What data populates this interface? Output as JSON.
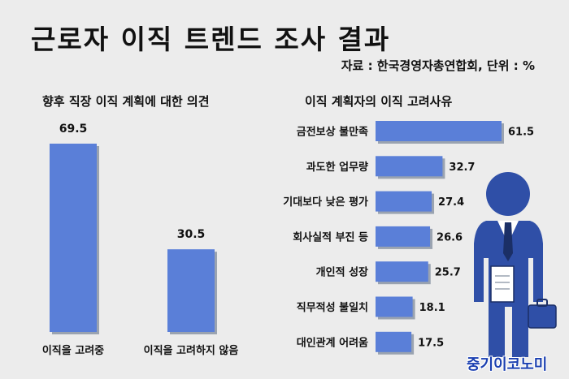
{
  "title": "근로자 이직 트렌드 조사 결과",
  "source": "자료 : 한국경영자총연합회, 단위 : %",
  "watermark": "중기이코노미",
  "colors": {
    "bar": "#5a7fd8",
    "bar_shadow": "#9aa3b0",
    "background": "#ececec"
  },
  "chart_data": [
    {
      "type": "bar",
      "orientation": "vertical",
      "title": "향후 직장 이직 계획에 대한 의견",
      "categories": [
        "이직을 고려중",
        "이직을 고려하지 않음"
      ],
      "values": [
        69.5,
        30.5
      ],
      "ylim": [
        0,
        69.5
      ],
      "grid": false
    },
    {
      "type": "bar",
      "orientation": "horizontal",
      "title": "이직 계획자의 이직 고려사유",
      "categories": [
        "금전보상 불만족",
        "과도한 업무량",
        "기대보다 낮은 평가",
        "회사실적 부진 등",
        "개인적 성장",
        "직무적성 불일치",
        "대인관계 어려움"
      ],
      "values": [
        61.5,
        32.7,
        27.4,
        26.6,
        25.7,
        18.1,
        17.5
      ],
      "xlim": [
        0,
        61.5
      ],
      "grid": false
    }
  ]
}
